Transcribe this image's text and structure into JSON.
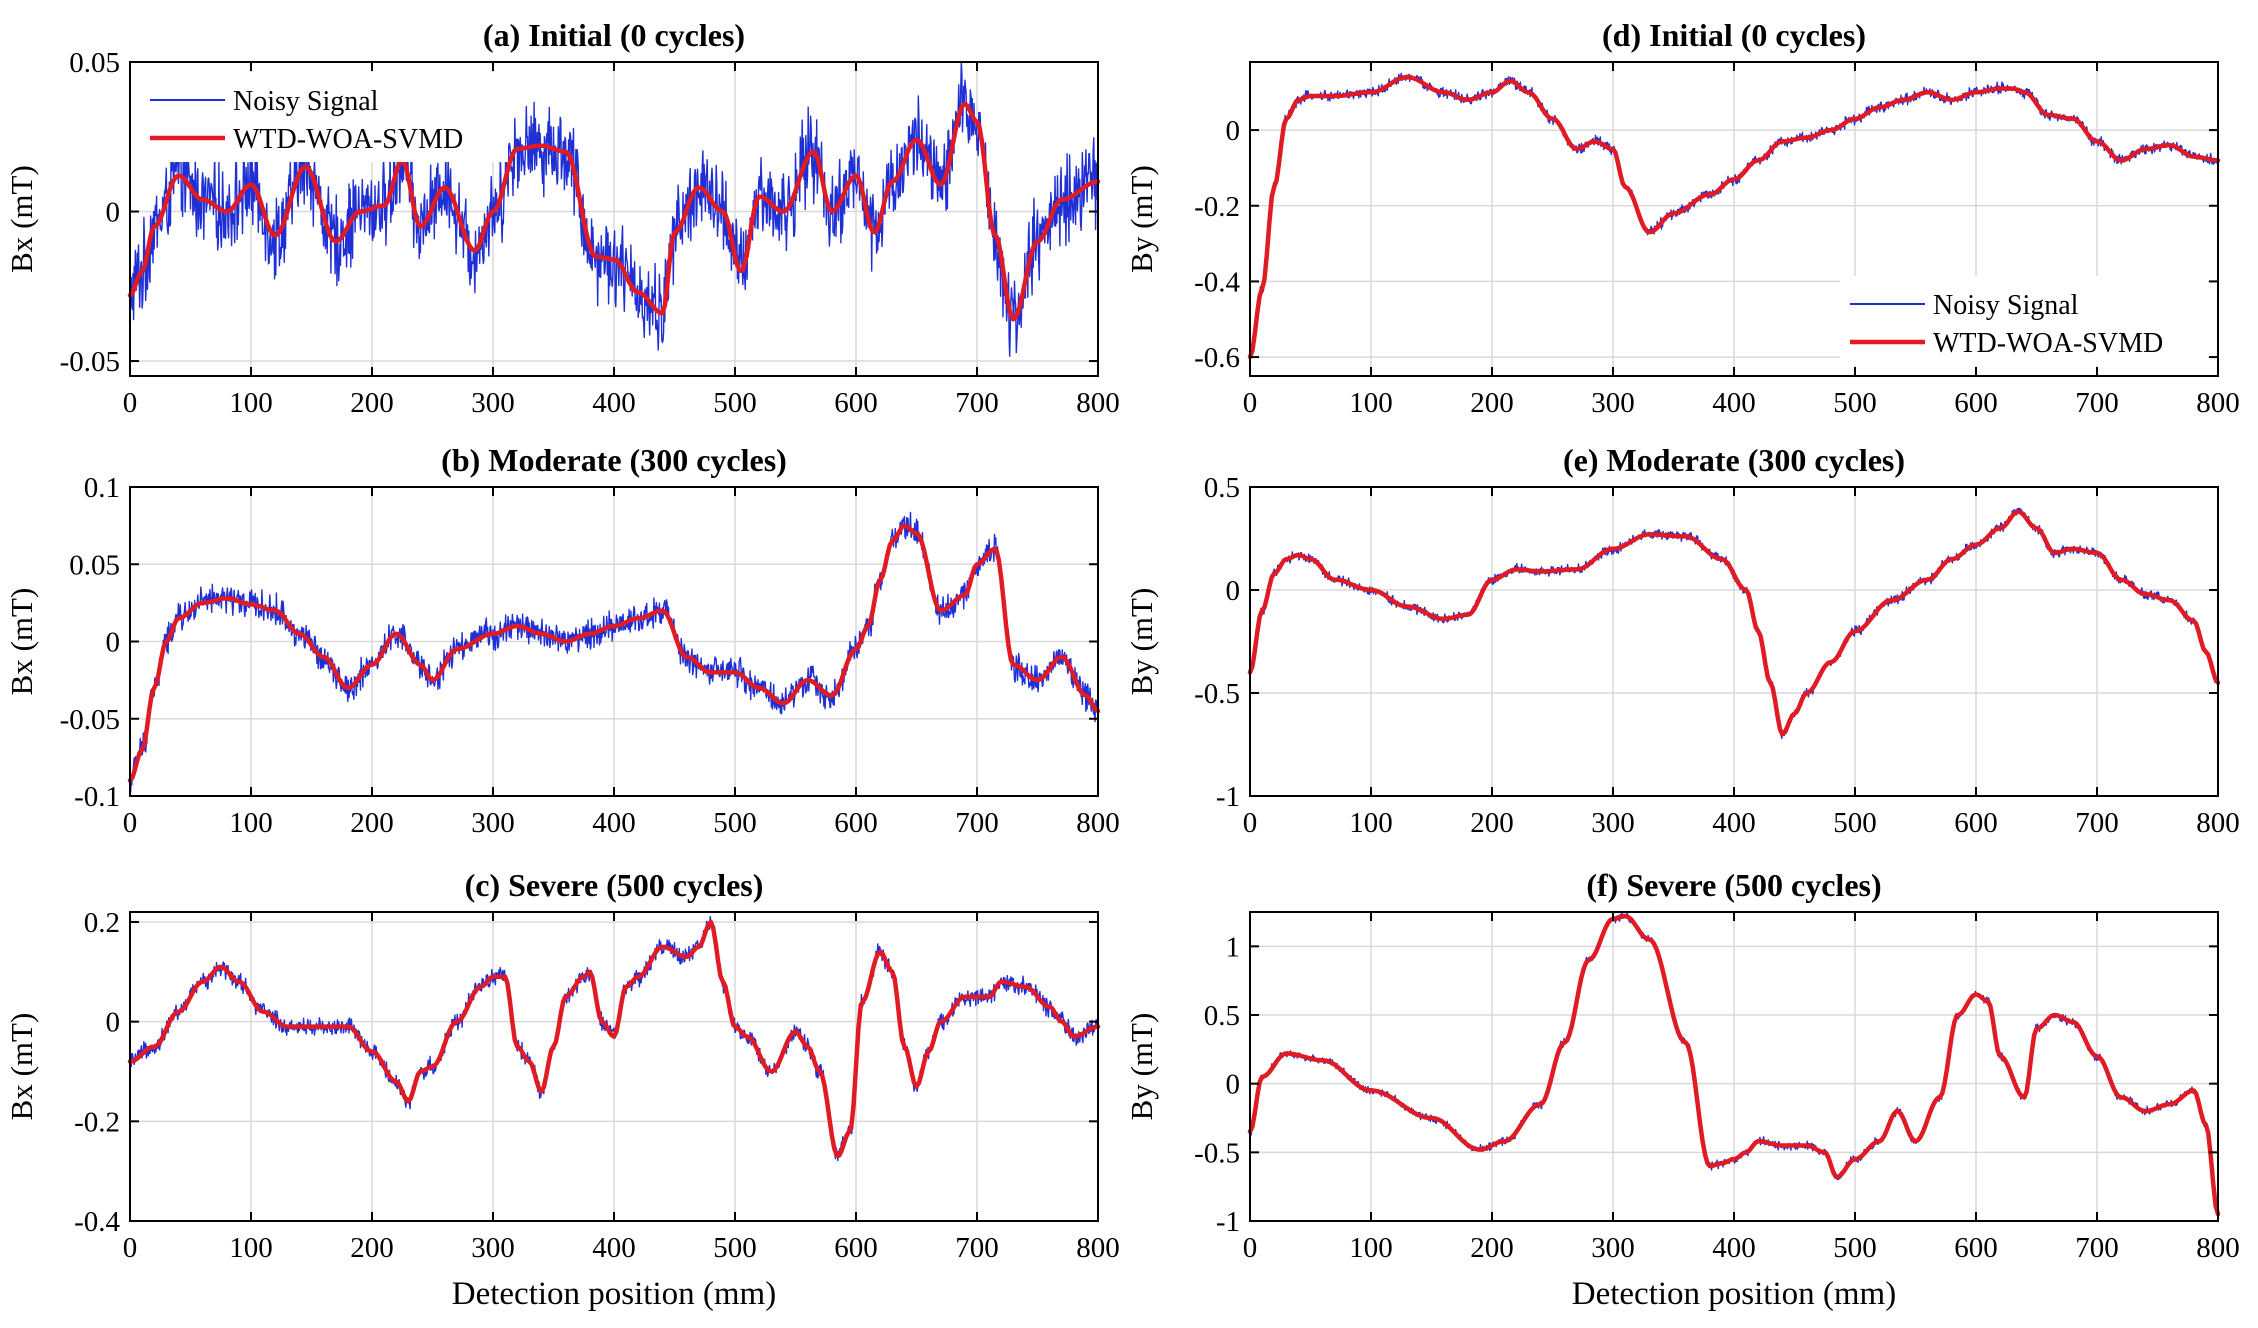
{
  "figure": {
    "common_xlabel": "Detection position (mm)",
    "colors": {
      "noisy": "#1f2fd6",
      "denoised": "#e01b24",
      "grid": "#d9d9d9",
      "axis": "#000000"
    }
  },
  "chart_data": [
    {
      "id": "a",
      "type": "line",
      "title": "(a) Initial (0 cycles)",
      "xlabel": "",
      "ylabel": "Bx (mT)",
      "xlim": [
        0,
        800
      ],
      "ylim": [
        -0.055,
        0.05
      ],
      "xticks": [
        0,
        100,
        200,
        300,
        400,
        500,
        600,
        700,
        800
      ],
      "yticks": [
        -0.05,
        0,
        0.05
      ],
      "ytick_labels": [
        "-0.05",
        "0",
        "0.05"
      ],
      "grid": true,
      "legend": "top-left",
      "noise_amp": 0.012,
      "series": [
        {
          "name": "Noisy Signal",
          "role": "noisy"
        },
        {
          "name": "WTD-WOA-SVMD",
          "role": "denoised",
          "x": [
            0,
            10,
            20,
            40,
            60,
            80,
            100,
            120,
            145,
            170,
            190,
            210,
            225,
            240,
            260,
            285,
            300,
            320,
            340,
            360,
            385,
            400,
            420,
            440,
            450,
            470,
            490,
            505,
            520,
            540,
            565,
            580,
            600,
            615,
            630,
            650,
            670,
            690,
            700,
            715,
            730,
            750,
            770,
            800
          ],
          "y": [
            -0.028,
            -0.02,
            -0.005,
            0.012,
            0.004,
            0.0,
            0.009,
            -0.008,
            0.015,
            -0.01,
            0.0,
            0.002,
            0.017,
            -0.005,
            0.008,
            -0.013,
            0.0,
            0.021,
            0.022,
            0.02,
            -0.015,
            -0.016,
            -0.027,
            -0.034,
            -0.007,
            0.008,
            0.0,
            -0.02,
            0.005,
            0.0,
            0.02,
            0.0,
            0.012,
            -0.007,
            0.01,
            0.024,
            0.009,
            0.036,
            0.03,
            -0.008,
            -0.036,
            -0.01,
            0.004,
            0.01
          ]
        }
      ]
    },
    {
      "id": "b",
      "type": "line",
      "title": "(b) Moderate (300 cycles)",
      "xlabel": "",
      "ylabel": "Bx (mT)",
      "xlim": [
        0,
        800
      ],
      "ylim": [
        -0.1,
        0.1
      ],
      "xticks": [
        0,
        100,
        200,
        300,
        400,
        500,
        600,
        700,
        800
      ],
      "yticks": [
        -0.1,
        -0.05,
        0,
        0.05,
        0.1
      ],
      "ytick_labels": [
        "-0.1",
        "-0.05",
        "0",
        "0.05",
        "0.1"
      ],
      "grid": true,
      "legend": "",
      "noise_amp": 0.008,
      "series": [
        {
          "name": "Noisy Signal",
          "role": "noisy"
        },
        {
          "name": "WTD-WOA-SVMD",
          "role": "denoised",
          "x": [
            0,
            10,
            20,
            30,
            40,
            60,
            80,
            100,
            120,
            140,
            160,
            180,
            200,
            220,
            240,
            250,
            270,
            300,
            320,
            340,
            360,
            380,
            400,
            420,
            440,
            460,
            480,
            500,
            520,
            540,
            560,
            580,
            600,
            610,
            620,
            630,
            640,
            650,
            670,
            690,
            700,
            715,
            730,
            750,
            770,
            790,
            800
          ],
          "y": [
            -0.09,
            -0.07,
            -0.03,
            0.0,
            0.015,
            0.025,
            0.028,
            0.024,
            0.02,
            0.005,
            -0.01,
            -0.03,
            -0.015,
            0.005,
            -0.015,
            -0.025,
            -0.005,
            0.005,
            0.01,
            0.005,
            0.0,
            0.005,
            0.01,
            0.015,
            0.02,
            -0.01,
            -0.02,
            -0.02,
            -0.03,
            -0.04,
            -0.025,
            -0.035,
            -0.005,
            0.01,
            0.04,
            0.065,
            0.075,
            0.07,
            0.02,
            0.03,
            0.05,
            0.06,
            -0.015,
            -0.025,
            -0.01,
            -0.035,
            -0.045
          ]
        }
      ]
    },
    {
      "id": "c",
      "type": "line",
      "title": "(c) Severe (500 cycles)",
      "xlabel": "Detection position (mm)",
      "ylabel": "Bx (mT)",
      "xlim": [
        0,
        800
      ],
      "ylim": [
        -0.4,
        0.22
      ],
      "xticks": [
        0,
        100,
        200,
        300,
        400,
        500,
        600,
        700,
        800
      ],
      "yticks": [
        -0.4,
        -0.2,
        0,
        0.2
      ],
      "ytick_labels": [
        "-0.4",
        "-0.2",
        "0",
        "0.2"
      ],
      "grid": true,
      "legend": "",
      "noise_amp": 0.015,
      "series": [
        {
          "name": "Noisy Signal",
          "role": "noisy"
        },
        {
          "name": "WTD-WOA-SVMD",
          "role": "denoised",
          "x": [
            0,
            20,
            40,
            60,
            75,
            90,
            110,
            130,
            160,
            180,
            200,
            220,
            230,
            240,
            250,
            270,
            290,
            300,
            310,
            320,
            330,
            340,
            350,
            360,
            375,
            380,
            390,
            400,
            410,
            420,
            440,
            460,
            470,
            480,
            490,
            500,
            510,
            530,
            550,
            560,
            570,
            585,
            595,
            605,
            620,
            630,
            640,
            650,
            660,
            670,
            690,
            700,
            710,
            720,
            740,
            760,
            770,
            780,
            800
          ],
          "y": [
            -0.08,
            -0.05,
            0.02,
            0.08,
            0.11,
            0.08,
            0.02,
            -0.01,
            -0.01,
            -0.01,
            -0.06,
            -0.12,
            -0.16,
            -0.1,
            -0.09,
            0.0,
            0.07,
            0.09,
            0.09,
            -0.05,
            -0.08,
            -0.14,
            -0.05,
            0.05,
            0.09,
            0.1,
            0.0,
            -0.03,
            0.07,
            0.09,
            0.15,
            0.13,
            0.15,
            0.2,
            0.08,
            -0.01,
            -0.03,
            -0.1,
            -0.02,
            -0.05,
            -0.1,
            -0.27,
            -0.22,
            0.04,
            0.14,
            0.1,
            -0.05,
            -0.13,
            -0.06,
            0.0,
            0.05,
            0.05,
            0.05,
            0.08,
            0.07,
            0.03,
            0.0,
            -0.03,
            -0.01
          ]
        }
      ]
    },
    {
      "id": "d",
      "type": "line",
      "title": "(d) Initial (0 cycles)",
      "xlabel": "",
      "ylabel": "By (mT)",
      "xlim": [
        0,
        800
      ],
      "ylim": [
        -0.65,
        0.18
      ],
      "xticks": [
        0,
        100,
        200,
        300,
        400,
        500,
        600,
        700,
        800
      ],
      "yticks": [
        -0.6,
        -0.4,
        -0.2,
        0
      ],
      "ytick_labels": [
        "-0.6",
        "-0.4",
        "-0.2",
        "0"
      ],
      "grid": true,
      "legend": "bottom-right",
      "noise_amp": 0.012,
      "series": [
        {
          "name": "Noisy Signal",
          "role": "noisy"
        },
        {
          "name": "WTD-WOA-SVMD",
          "role": "denoised",
          "x": [
            0,
            10,
            20,
            30,
            40,
            50,
            70,
            100,
            130,
            160,
            180,
            200,
            215,
            230,
            250,
            270,
            285,
            300,
            310,
            330,
            350,
            380,
            400,
            420,
            440,
            460,
            480,
            500,
            520,
            540,
            560,
            580,
            600,
            620,
            630,
            640,
            660,
            680,
            700,
            720,
            740,
            760,
            780,
            800
          ],
          "y": [
            -0.6,
            -0.42,
            -0.15,
            0.03,
            0.08,
            0.09,
            0.09,
            0.1,
            0.14,
            0.1,
            0.08,
            0.1,
            0.13,
            0.1,
            0.03,
            -0.05,
            -0.03,
            -0.05,
            -0.15,
            -0.27,
            -0.22,
            -0.17,
            -0.13,
            -0.08,
            -0.03,
            -0.02,
            0.0,
            0.03,
            0.06,
            0.08,
            0.1,
            0.08,
            0.1,
            0.11,
            0.11,
            0.1,
            0.04,
            0.03,
            -0.03,
            -0.08,
            -0.05,
            -0.04,
            -0.07,
            -0.08
          ]
        }
      ]
    },
    {
      "id": "e",
      "type": "line",
      "title": "(e) Moderate (300 cycles)",
      "xlabel": "",
      "ylabel": "By (mT)",
      "xlim": [
        0,
        800
      ],
      "ylim": [
        -1,
        0.5
      ],
      "xticks": [
        0,
        100,
        200,
        300,
        400,
        500,
        600,
        700,
        800
      ],
      "yticks": [
        -1,
        -0.5,
        0,
        0.5
      ],
      "ytick_labels": [
        "-1",
        "-0.5",
        "0",
        "0.5"
      ],
      "grid": true,
      "legend": "",
      "noise_amp": 0.02,
      "series": [
        {
          "name": "Noisy Signal",
          "role": "noisy"
        },
        {
          "name": "WTD-WOA-SVMD",
          "role": "denoised",
          "x": [
            0,
            10,
            20,
            30,
            40,
            50,
            70,
            100,
            130,
            160,
            180,
            200,
            220,
            240,
            270,
            300,
            330,
            360,
            390,
            410,
            420,
            430,
            440,
            450,
            460,
            480,
            500,
            530,
            560,
            580,
            600,
            620,
            635,
            650,
            665,
            680,
            700,
            720,
            740,
            760,
            780,
            790,
            800
          ],
          "y": [
            -0.4,
            -0.1,
            0.08,
            0.15,
            0.17,
            0.15,
            0.05,
            0.0,
            -0.08,
            -0.14,
            -0.12,
            0.05,
            0.1,
            0.09,
            0.1,
            0.2,
            0.27,
            0.26,
            0.15,
            0.0,
            -0.2,
            -0.45,
            -0.7,
            -0.6,
            -0.5,
            -0.35,
            -0.2,
            -0.05,
            0.05,
            0.15,
            0.22,
            0.3,
            0.38,
            0.3,
            0.18,
            0.2,
            0.18,
            0.05,
            -0.02,
            -0.05,
            -0.15,
            -0.3,
            -0.45
          ]
        }
      ]
    },
    {
      "id": "f",
      "type": "line",
      "title": "(f) Severe (500 cycles)",
      "xlabel": "Detection position (mm)",
      "ylabel": "By (mT)",
      "xlim": [
        0,
        800
      ],
      "ylim": [
        -1,
        1.25
      ],
      "xticks": [
        0,
        100,
        200,
        300,
        400,
        500,
        600,
        700,
        800
      ],
      "yticks": [
        -1,
        -0.5,
        0,
        0.5,
        1
      ],
      "ytick_labels": [
        "-1",
        "-0.5",
        "0",
        "0.5",
        "1"
      ],
      "grid": true,
      "legend": "",
      "noise_amp": 0.025,
      "series": [
        {
          "name": "Noisy Signal",
          "role": "noisy"
        },
        {
          "name": "WTD-WOA-SVMD",
          "role": "denoised",
          "x": [
            0,
            10,
            30,
            60,
            100,
            150,
            190,
            210,
            240,
            260,
            280,
            300,
            310,
            330,
            360,
            380,
            390,
            400,
            410,
            420,
            440,
            460,
            475,
            485,
            500,
            520,
            535,
            550,
            570,
            585,
            600,
            610,
            620,
            640,
            650,
            665,
            680,
            700,
            720,
            740,
            760,
            780,
            790,
            800
          ],
          "y": [
            -0.35,
            0.05,
            0.22,
            0.17,
            -0.05,
            -0.25,
            -0.48,
            -0.42,
            -0.15,
            0.3,
            0.9,
            1.2,
            1.22,
            1.05,
            0.3,
            -0.6,
            -0.58,
            -0.55,
            -0.5,
            -0.42,
            -0.45,
            -0.45,
            -0.5,
            -0.68,
            -0.55,
            -0.42,
            -0.2,
            -0.42,
            -0.1,
            0.5,
            0.65,
            0.6,
            0.2,
            -0.1,
            0.4,
            0.5,
            0.45,
            0.2,
            -0.1,
            -0.2,
            -0.15,
            -0.05,
            -0.3,
            -0.95
          ]
        }
      ]
    }
  ]
}
